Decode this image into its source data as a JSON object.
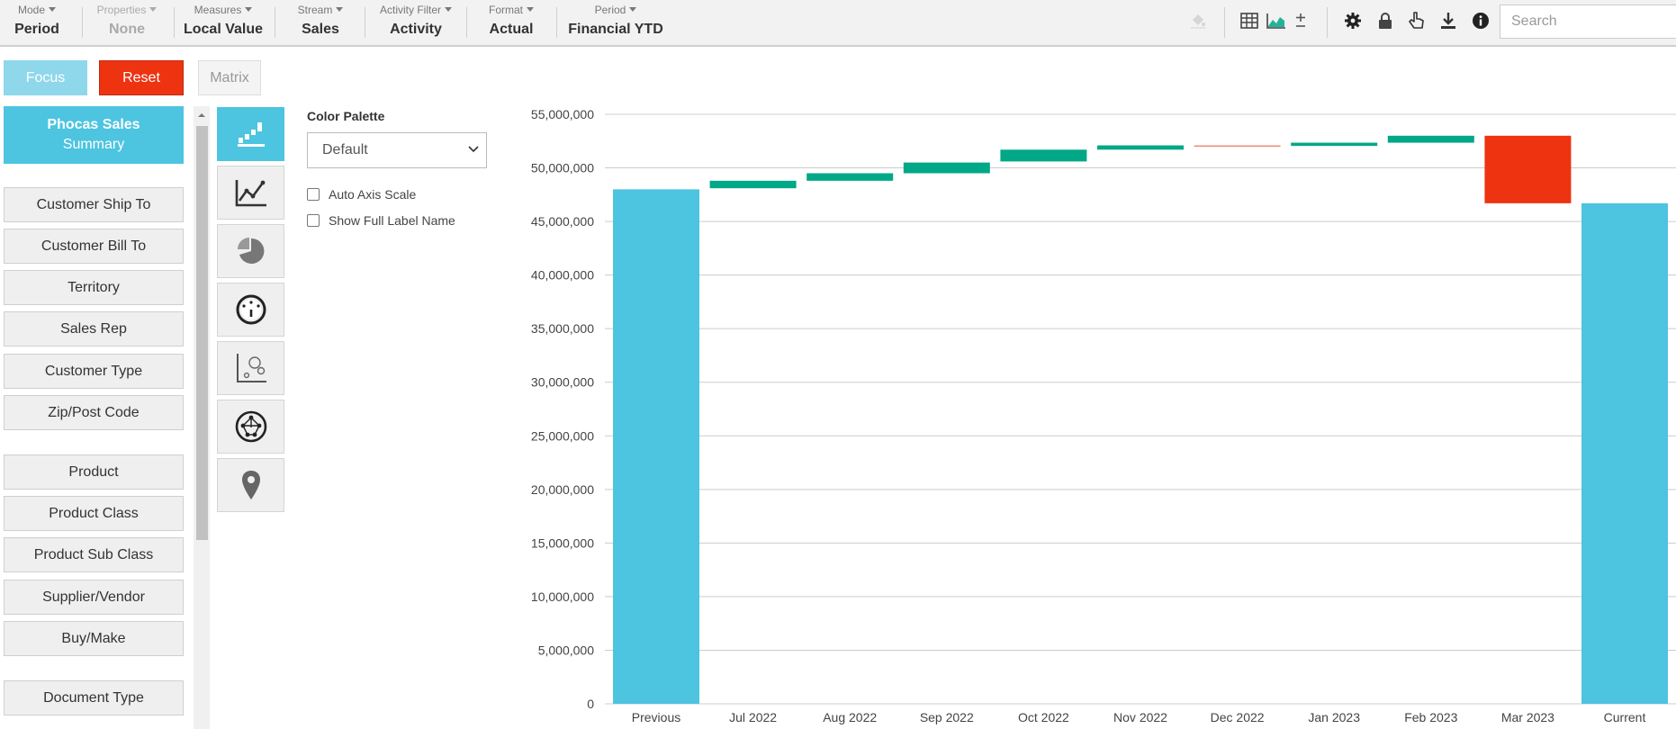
{
  "toolbar": {
    "menus": [
      {
        "label": "Mode",
        "value": "Period",
        "enabled": true
      },
      {
        "label": "Properties",
        "value": "None",
        "enabled": false
      },
      {
        "label": "Measures",
        "value": "Local Value",
        "enabled": true
      },
      {
        "label": "Stream",
        "value": "Sales",
        "enabled": true
      },
      {
        "label": "Activity Filter",
        "value": "Activity",
        "enabled": true
      },
      {
        "label": "Format",
        "value": "Actual",
        "enabled": true
      },
      {
        "label": "Period",
        "value": "Financial YTD",
        "enabled": true
      }
    ],
    "icons": [
      "paint-bucket-icon",
      "table-view-icon",
      "chart-view-icon",
      "plus-minus-icon",
      "settings-gear-icon",
      "lock-icon",
      "hand-pointer-icon",
      "download-icon",
      "info-icon"
    ],
    "search_placeholder": "Search"
  },
  "actions": {
    "focus_label": "Focus",
    "reset_label": "Reset",
    "matrix_label": "Matrix"
  },
  "summary": {
    "title": "Phocas Sales",
    "subtitle": "Summary"
  },
  "dimensions": [
    "Customer Ship To",
    "Customer Bill To",
    "Territory",
    "Sales Rep",
    "Customer Type",
    "Zip/Post Code",
    "Product",
    "Product Class",
    "Product Sub Class",
    "Supplier/Vendor",
    "Buy/Make",
    "Document Type"
  ],
  "chart_types": [
    {
      "name": "waterfall-chart-icon",
      "active": true
    },
    {
      "name": "line-chart-icon",
      "active": false
    },
    {
      "name": "pie-chart-icon",
      "active": false
    },
    {
      "name": "gauge-chart-icon",
      "active": false
    },
    {
      "name": "bubble-chart-icon",
      "active": false
    },
    {
      "name": "network-chart-icon",
      "active": false
    },
    {
      "name": "map-pin-icon",
      "active": false
    }
  ],
  "options": {
    "palette_label": "Color Palette",
    "palette_value": "Default",
    "auto_axis_label": "Auto Axis Scale",
    "auto_axis_checked": false,
    "full_label_label": "Show Full Label Name",
    "full_label_checked": false
  },
  "colors": {
    "total": "#4dc4e0",
    "increase": "#00a887",
    "decrease": "#ee3311",
    "decrease_small": "#ef8a6e",
    "focus": "#8fd7ea",
    "grid": "#cccccc"
  },
  "chart_data": {
    "type": "waterfall",
    "title": "",
    "xlabel": "",
    "ylabel": "",
    "ylim": [
      0,
      55000000
    ],
    "yticks": [
      0,
      5000000,
      10000000,
      15000000,
      20000000,
      25000000,
      30000000,
      35000000,
      40000000,
      45000000,
      50000000,
      55000000
    ],
    "ytick_labels": [
      "0",
      "5,000,000",
      "10,000,000",
      "15,000,000",
      "20,000,000",
      "25,000,000",
      "30,000,000",
      "35,000,000",
      "40,000,000",
      "45,000,000",
      "50,000,000",
      "55,000,000"
    ],
    "grid": true,
    "categories": [
      "Previous",
      "Jul 2022",
      "Aug 2022",
      "Sep 2022",
      "Oct 2022",
      "Nov 2022",
      "Dec 2022",
      "Jan 2023",
      "Feb 2023",
      "Mar 2023",
      "Current"
    ],
    "bars": [
      {
        "category": "Previous",
        "kind": "total",
        "start": 0,
        "end": 48000000
      },
      {
        "category": "Jul 2022",
        "kind": "increase",
        "start": 48100000,
        "end": 48800000
      },
      {
        "category": "Aug 2022",
        "kind": "increase",
        "start": 48800000,
        "end": 49500000
      },
      {
        "category": "Sep 2022",
        "kind": "increase",
        "start": 49500000,
        "end": 50500000
      },
      {
        "category": "Oct 2022",
        "kind": "increase",
        "start": 50600000,
        "end": 51700000
      },
      {
        "category": "Nov 2022",
        "kind": "increase",
        "start": 51700000,
        "end": 52100000
      },
      {
        "category": "Dec 2022",
        "kind": "decrease_small",
        "start": 52100000,
        "end": 52050000
      },
      {
        "category": "Jan 2023",
        "kind": "increase",
        "start": 52050000,
        "end": 52350000
      },
      {
        "category": "Feb 2023",
        "kind": "increase",
        "start": 52350000,
        "end": 53000000
      },
      {
        "category": "Mar 2023",
        "kind": "decrease",
        "start": 53000000,
        "end": 46700000
      },
      {
        "category": "Current",
        "kind": "total",
        "start": 0,
        "end": 46700000
      }
    ]
  }
}
